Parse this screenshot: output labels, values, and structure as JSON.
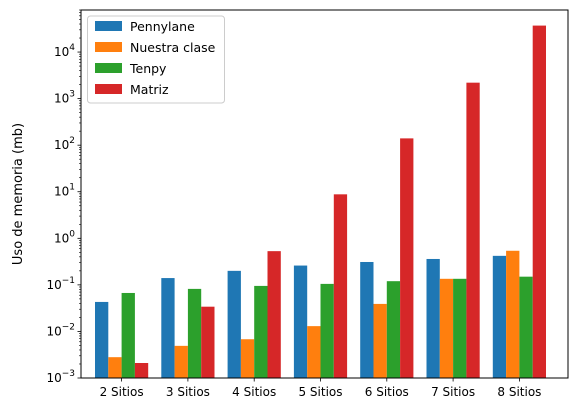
{
  "chart_data": {
    "type": "bar",
    "title": "",
    "xlabel": "",
    "ylabel": "Uso de memoria (mb)",
    "yscale": "log",
    "ylim": [
      0.001,
      80000
    ],
    "categories": [
      "2 Sitios",
      "3 Sitios",
      "4 Sitios",
      "5 Sitios",
      "6 Sitios",
      "7 Sitios",
      "8 Sitios"
    ],
    "yticks": [
      {
        "value": 0.001,
        "base": "10",
        "exp": "−3"
      },
      {
        "value": 0.01,
        "base": "10",
        "exp": "−2"
      },
      {
        "value": 0.1,
        "base": "10",
        "exp": "−1"
      },
      {
        "value": 1,
        "base": "10",
        "exp": "0"
      },
      {
        "value": 10,
        "base": "10",
        "exp": "1"
      },
      {
        "value": 100,
        "base": "10",
        "exp": "2"
      },
      {
        "value": 1000,
        "base": "10",
        "exp": "3"
      },
      {
        "value": 10000,
        "base": "10",
        "exp": "4"
      }
    ],
    "legend_position": "top-left",
    "grid": false,
    "series": [
      {
        "name": "Pennylane",
        "color": "#1f77b4",
        "values": [
          0.043,
          0.14,
          0.2,
          0.26,
          0.31,
          0.36,
          0.42
        ]
      },
      {
        "name": "Nuestra clase",
        "color": "#ff7f0e",
        "values": [
          0.0028,
          0.0049,
          0.0068,
          0.013,
          0.039,
          0.135,
          0.54
        ]
      },
      {
        "name": "Tenpy",
        "color": "#2ca02c",
        "values": [
          0.067,
          0.082,
          0.095,
          0.105,
          0.12,
          0.135,
          0.15
        ]
      },
      {
        "name": "Matriz",
        "color": "#d62728",
        "values": [
          0.0021,
          0.034,
          0.53,
          8.8,
          140,
          2200,
          37000
        ]
      }
    ]
  }
}
